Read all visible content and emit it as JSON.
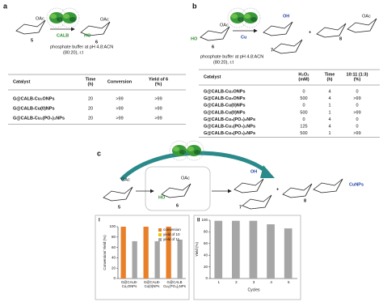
{
  "panel_a": {
    "label": "a",
    "compound_5": "5",
    "compound_6": "6",
    "enzyme": "CALB",
    "substituent": "OAc",
    "hydroxyl": "HO",
    "conditions": [
      "phosphate buffer at pH 4.8:ACN",
      "(80:20), r.t"
    ],
    "table": {
      "headers": [
        [
          "Catalyst"
        ],
        [
          "Time",
          "(h)"
        ],
        [
          "Conversion"
        ],
        [
          "Yield of 6",
          "(%)"
        ]
      ],
      "rows": [
        [
          "G@CALB-Cu₂ONPs",
          "20",
          ">99",
          ">99"
        ],
        [
          "G@CALB-Cu(0)NPs",
          "20",
          ">99",
          ">99"
        ],
        [
          "G@CALB-Cu₃(PO₄)₂NPs",
          "20",
          ">99",
          ">99"
        ]
      ]
    }
  },
  "panel_b": {
    "label": "b",
    "compound_6": "6",
    "compound_7": "7",
    "compound_8": "8",
    "metal": "Cu",
    "substituent": "OAc",
    "hydroxyl": "HO",
    "product_hydroxyl": "OH",
    "conditions": [
      "phosphate buffer at pH 4.8:ACN",
      "(80:20), r.t"
    ],
    "table": {
      "headers": [
        [
          "Catalyst"
        ],
        [
          "H₂O₂",
          "(mM)"
        ],
        [
          "Time",
          "(h)"
        ],
        [
          "10:11 (1:3)",
          "(%)"
        ]
      ],
      "rows": [
        [
          "G@CALB-Cu₂ONPs",
          "0",
          "4",
          "0"
        ],
        [
          "G@CALB-Cu₂ONPs",
          "500",
          "4",
          ">99"
        ],
        [
          "G@CALB-Cu(0)NPs",
          "0",
          "1",
          "0"
        ],
        [
          "G@CALB-Cu(0)NPs",
          "500",
          "1",
          ">99"
        ],
        [
          "G@CALB-Cu₃(PO₄)₂NPs",
          "0",
          "4",
          "0"
        ],
        [
          "G@CALB-Cu₃(PO₄)₂NPs",
          "125",
          "4",
          "0"
        ],
        [
          "G@CALB-Cu₃(PO₄)₂NPs",
          "500",
          "1",
          ">99"
        ]
      ]
    }
  },
  "panel_c": {
    "label": "c",
    "compound_5": "5",
    "compound_6": "6",
    "compound_7": "7",
    "compound_8": "8",
    "substituent": "OAc",
    "hydroxyl": "HO",
    "product_hydroxyl": "OH",
    "nanoparticles": "CuNPs"
  },
  "chart_data": [
    {
      "type": "bar",
      "panel_label": "I",
      "ylabel": "Conversion/ Yield (%)",
      "categories": [
        [
          "G@CALB-",
          "Cu₂ONPs"
        ],
        [
          "G@CALB-",
          "Cu(0)NPs"
        ],
        [
          "G@CALB",
          "Cu₃(PO₄)₂NPs"
        ]
      ],
      "series": [
        {
          "name": "conversion",
          "color": "#e8802a",
          "values": [
            100,
            100,
            100
          ]
        },
        {
          "name": "yield of 10",
          "color": "#f5c400",
          "values": [
            0,
            0,
            0
          ]
        },
        {
          "name": "yield of 11",
          "color": "#a6a6a6",
          "values": [
            72,
            72,
            75
          ]
        }
      ],
      "ylim": [
        0,
        100
      ],
      "yticks": [
        0,
        20,
        40,
        60,
        80,
        100
      ],
      "legend": "top-right"
    },
    {
      "type": "bar",
      "panel_label": "II",
      "ylabel": "Yield (%)",
      "xlabel": "Cycles",
      "categories": [
        "1",
        "2",
        "3",
        "4",
        "5"
      ],
      "values": [
        99,
        99,
        99,
        93,
        86
      ],
      "color": "#a6a6a6",
      "ylim": [
        0,
        100
      ],
      "yticks": [
        0,
        20,
        40,
        60,
        80,
        100
      ]
    }
  ]
}
